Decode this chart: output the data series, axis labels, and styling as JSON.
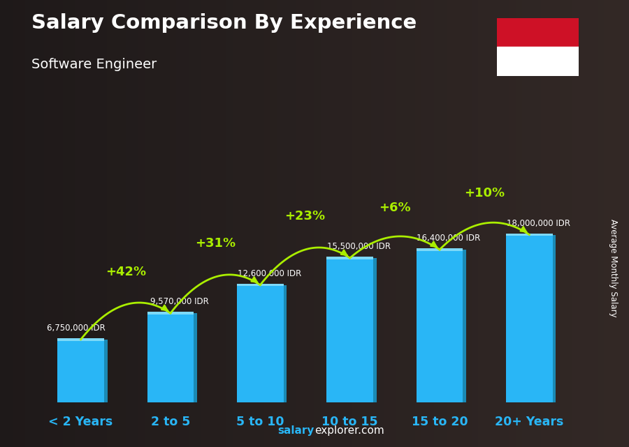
{
  "title": "Salary Comparison By Experience",
  "subtitle": "Software Engineer",
  "ylabel": "Average Monthly Salary",
  "footer_bold": "salary",
  "footer_rest": "explorer.com",
  "categories": [
    "< 2 Years",
    "2 to 5",
    "5 to 10",
    "10 to 15",
    "15 to 20",
    "20+ Years"
  ],
  "values": [
    6750000,
    9570000,
    12600000,
    15500000,
    16400000,
    18000000
  ],
  "value_labels": [
    "6,750,000 IDR",
    "9,570,000 IDR",
    "12,600,000 IDR",
    "15,500,000 IDR",
    "16,400,000 IDR",
    "18,000,000 IDR"
  ],
  "pct_labels": [
    "+42%",
    "+31%",
    "+23%",
    "+6%",
    "+10%"
  ],
  "bar_color": "#29b6f6",
  "bar_color_dark": "#1a8ab5",
  "bar_color_light": "#7dd9f8",
  "bg_color": "#2a2a2a",
  "title_color": "#ffffff",
  "subtitle_color": "#ffffff",
  "value_color": "#ffffff",
  "pct_color": "#aaee00",
  "arrow_color": "#aaee00",
  "cat_color": "#29b6f6",
  "flag_red": "#CE1126",
  "flag_white": "#ffffff"
}
